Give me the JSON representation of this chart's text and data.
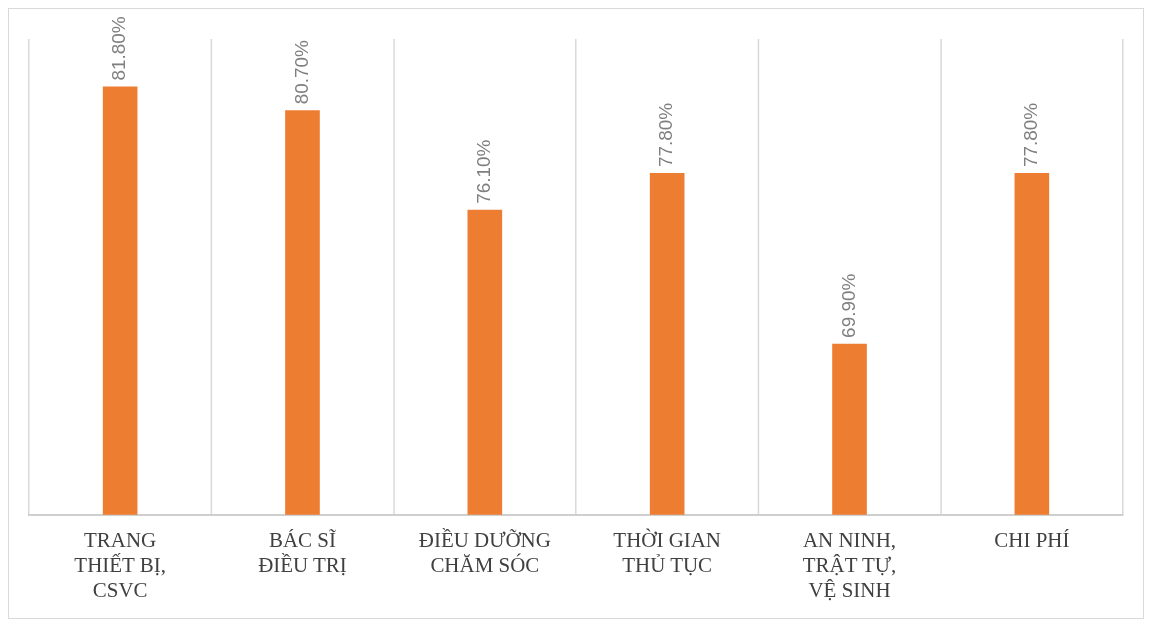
{
  "chart_data": {
    "type": "bar",
    "categories": [
      "TRANG THIẾT BỊ, CSVC",
      "BÁC SĨ ĐIỀU TRỊ",
      "ĐIỀU DƯỠNG CHĂM SÓC",
      "THỜI GIAN THỦ TỤC",
      "AN NINH, TRẬT TỰ, VỆ SINH",
      "CHI PHÍ"
    ],
    "values": [
      81.8,
      80.7,
      76.1,
      77.8,
      69.9,
      77.8
    ],
    "value_labels": [
      "81.80%",
      "80.70%",
      "76.10%",
      "77.80%",
      "69.90%",
      "77.80%"
    ],
    "color": "#ed7d31",
    "ylim": [
      62,
      84
    ],
    "tick_labels": "x",
    "grid": "x",
    "legend": false
  }
}
